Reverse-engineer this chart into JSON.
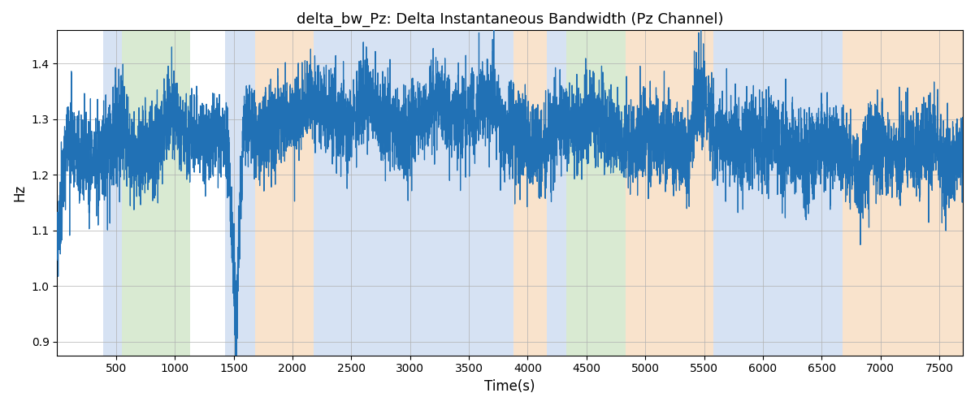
{
  "title": "delta_bw_Pz: Delta Instantaneous Bandwidth (Pz Channel)",
  "xlabel": "Time(s)",
  "ylabel": "Hz",
  "ylim": [
    0.875,
    1.46
  ],
  "xlim": [
    0,
    7700
  ],
  "line_color": "#2171b5",
  "line_width": 0.9,
  "background_color": "#ffffff",
  "grid_color": "#b0b0b0",
  "seed": 42,
  "n_points": 7700,
  "bands": [
    {
      "xmin": 390,
      "xmax": 550,
      "color": "#aec6e8",
      "alpha": 0.5
    },
    {
      "xmin": 550,
      "xmax": 1130,
      "color": "#b5d6a7",
      "alpha": 0.5
    },
    {
      "xmin": 1430,
      "xmax": 1680,
      "color": "#aec6e8",
      "alpha": 0.5
    },
    {
      "xmin": 1680,
      "xmax": 2180,
      "color": "#f5c99a",
      "alpha": 0.5
    },
    {
      "xmin": 2180,
      "xmax": 3880,
      "color": "#aec6e8",
      "alpha": 0.5
    },
    {
      "xmin": 3880,
      "xmax": 4160,
      "color": "#f5c99a",
      "alpha": 0.5
    },
    {
      "xmin": 4160,
      "xmax": 4330,
      "color": "#aec6e8",
      "alpha": 0.5
    },
    {
      "xmin": 4330,
      "xmax": 4830,
      "color": "#b5d6a7",
      "alpha": 0.5
    },
    {
      "xmin": 4830,
      "xmax": 5580,
      "color": "#f5c99a",
      "alpha": 0.5
    },
    {
      "xmin": 5580,
      "xmax": 6430,
      "color": "#aec6e8",
      "alpha": 0.5
    },
    {
      "xmin": 6430,
      "xmax": 6680,
      "color": "#aec6e8",
      "alpha": 0.5
    },
    {
      "xmin": 6680,
      "xmax": 7700,
      "color": "#f5c99a",
      "alpha": 0.5
    }
  ],
  "xticks": [
    500,
    1000,
    1500,
    2000,
    2500,
    3000,
    3500,
    4000,
    4500,
    5000,
    5500,
    6000,
    6500,
    7000,
    7500
  ],
  "title_fontsize": 13
}
